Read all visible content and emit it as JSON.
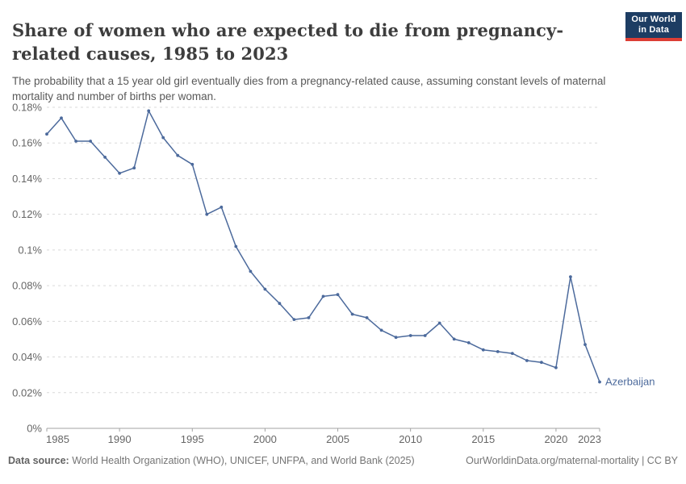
{
  "header": {
    "title": "Share of women who are expected to die from pregnancy-related causes, 1985 to 2023",
    "subtitle": "The probability that a 15 year old girl eventually dies from a pregnancy-related cause, assuming constant levels of maternal mortality and number of births per woman.",
    "logo": {
      "line1": "Our World",
      "line2": "in Data"
    }
  },
  "footer": {
    "source_label": "Data source:",
    "source_text": " World Health Organization (WHO), UNICEF, UNFPA, and World Bank (2025)",
    "link_text": "OurWorldinData.org/maternal-mortality | CC BY"
  },
  "colors": {
    "line": "#4c6a9c",
    "entity_label": "#4c6a9c",
    "grid": "#d9d9d9",
    "axis": "#a3a3a3",
    "tick_text": "#666666",
    "logo_bg": "#1d3d63",
    "logo_stripe": "#dc3e35"
  },
  "chart_data": {
    "type": "line",
    "title": "Share of women who are expected to die from pregnancy-related causes, 1985 to 2023",
    "entity": "Azerbaijan",
    "unit": "%",
    "xlim": [
      1985,
      2023
    ],
    "ylim": [
      0,
      0.18
    ],
    "grid": true,
    "x_ticks": [
      1985,
      1990,
      1995,
      2000,
      2005,
      2010,
      2015,
      2020,
      2023
    ],
    "y_ticks": [
      {
        "value": 0,
        "label": "0%"
      },
      {
        "value": 0.02,
        "label": "0.02%"
      },
      {
        "value": 0.04,
        "label": "0.04%"
      },
      {
        "value": 0.06,
        "label": "0.06%"
      },
      {
        "value": 0.08,
        "label": "0.08%"
      },
      {
        "value": 0.1,
        "label": "0.1%"
      },
      {
        "value": 0.12,
        "label": "0.12%"
      },
      {
        "value": 0.14,
        "label": "0.14%"
      },
      {
        "value": 0.16,
        "label": "0.16%"
      },
      {
        "value": 0.18,
        "label": "0.18%"
      }
    ],
    "x": [
      1985,
      1986,
      1987,
      1988,
      1989,
      1990,
      1991,
      1992,
      1993,
      1994,
      1995,
      1996,
      1997,
      1998,
      1999,
      2000,
      2001,
      2002,
      2003,
      2004,
      2005,
      2006,
      2007,
      2008,
      2009,
      2010,
      2011,
      2012,
      2013,
      2014,
      2015,
      2016,
      2017,
      2018,
      2019,
      2020,
      2021,
      2022,
      2023
    ],
    "values": [
      0.165,
      0.174,
      0.161,
      0.161,
      0.152,
      0.143,
      0.146,
      0.178,
      0.163,
      0.153,
      0.148,
      0.12,
      0.124,
      0.102,
      0.088,
      0.078,
      0.07,
      0.061,
      0.062,
      0.074,
      0.075,
      0.064,
      0.062,
      0.055,
      0.051,
      0.052,
      0.052,
      0.059,
      0.05,
      0.048,
      0.044,
      0.043,
      0.042,
      0.038,
      0.037,
      0.034,
      0.085,
      0.047,
      0.026
    ]
  }
}
